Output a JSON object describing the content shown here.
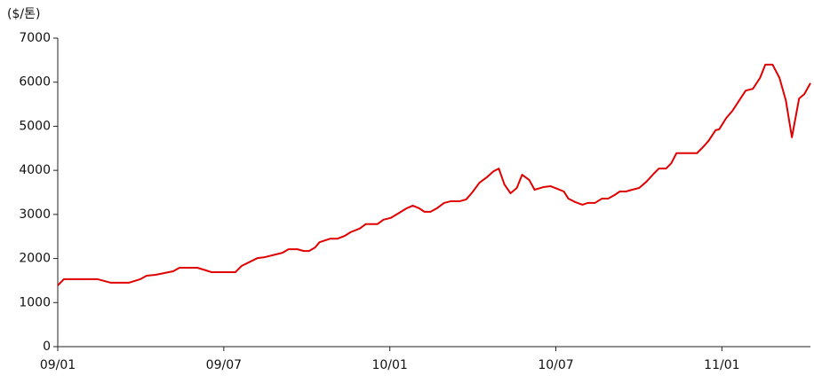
{
  "chart_data": {
    "type": "line",
    "unit_label": "($/톤)",
    "x": [
      0,
      0.22,
      1.12,
      1.44,
      1.92,
      2.57,
      2.98,
      3.21,
      3.53,
      3.85,
      4.17,
      4.4,
      5.04,
      5.36,
      5.55,
      6.42,
      6.64,
      6.96,
      7.22,
      7.48,
      7.86,
      8.12,
      8.34,
      8.66,
      8.89,
      9.08,
      9.3,
      9.46,
      9.85,
      10.11,
      10.36,
      10.59,
      10.91,
      11.13,
      11.55,
      11.77,
      12.03,
      12.35,
      12.61,
      12.83,
      13.06,
      13.25,
      13.47,
      13.7,
      13.96,
      14.21,
      14.53,
      14.76,
      14.98,
      15.24,
      15.5,
      15.75,
      15.94,
      16.14,
      16.36,
      16.59,
      16.78,
      17.04,
      17.23,
      17.55,
      17.81,
      18.06,
      18.29,
      18.45,
      18.7,
      18.96,
      19.15,
      19.41,
      19.67,
      19.89,
      20.12,
      20.31,
      20.53,
      20.76,
      21.01,
      21.27,
      21.53,
      21.72,
      21.98,
      22.17,
      22.36,
      23.1,
      23.32,
      23.52,
      23.77,
      23.9,
      24.16,
      24.38,
      24.61,
      24.86,
      25.12,
      25.38,
      25.57,
      25.83,
      26.08,
      26.31,
      26.53,
      26.79,
      26.98,
      27.2
    ],
    "series": [
      {
        "color": "#e00000",
        "values": [
          1390,
          1530,
          1530,
          1530,
          1450,
          1450,
          1530,
          1610,
          1630,
          1670,
          1710,
          1790,
          1790,
          1730,
          1690,
          1690,
          1830,
          1930,
          2010,
          2030,
          2090,
          2130,
          2210,
          2210,
          2170,
          2170,
          2250,
          2370,
          2450,
          2450,
          2510,
          2600,
          2680,
          2780,
          2780,
          2880,
          2920,
          3040,
          3140,
          3200,
          3140,
          3060,
          3060,
          3140,
          3260,
          3300,
          3300,
          3340,
          3500,
          3720,
          3840,
          3980,
          4040,
          3680,
          3480,
          3600,
          3900,
          3780,
          3560,
          3620,
          3640,
          3580,
          3520,
          3360,
          3280,
          3220,
          3260,
          3260,
          3360,
          3360,
          3440,
          3520,
          3520,
          3560,
          3600,
          3740,
          3920,
          4040,
          4040,
          4160,
          4390,
          4390,
          4530,
          4670,
          4910,
          4930,
          5190,
          5350,
          5570,
          5810,
          5850,
          6100,
          6400,
          6400,
          6100,
          5590,
          4750,
          5630,
          5730,
          5980
        ]
      }
    ],
    "xlim": [
      0,
      27.2
    ],
    "xticks": [
      {
        "value": 0,
        "label": "09/01"
      },
      {
        "value": 6,
        "label": "09/07"
      },
      {
        "value": 12,
        "label": "10/01"
      },
      {
        "value": 18,
        "label": "10/07"
      },
      {
        "value": 24,
        "label": "11/01"
      }
    ],
    "ylim": [
      0,
      7000
    ],
    "yticks": [
      0,
      1000,
      2000,
      3000,
      4000,
      5000,
      6000,
      7000
    ],
    "grid": false
  }
}
